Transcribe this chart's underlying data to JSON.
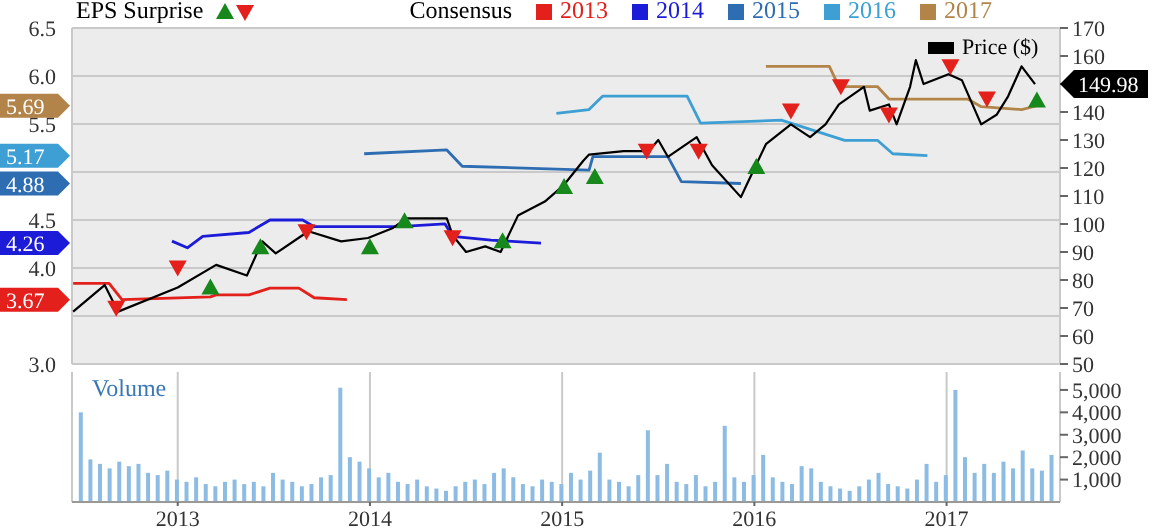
{
  "chart_data": [
    {
      "type": "line",
      "annotations": [
        "EPS Surprise",
        "Consensus",
        "3.67",
        "4.26",
        "4.88",
        "5.17",
        "5.69",
        "149.98"
      ],
      "xlim": [
        2012.45,
        2017.59
      ],
      "xticks": [
        2013,
        2014,
        2015,
        2016,
        2017
      ],
      "ylim": [
        3,
        6.5
      ],
      "yticks": [
        {
          "value": 3,
          "label": "3.0"
        },
        {
          "value": 3.5,
          "label": null
        },
        {
          "value": 4,
          "label": "4.0"
        },
        {
          "value": 4.5,
          "label": "4.5"
        },
        {
          "value": 5,
          "label": null
        },
        {
          "value": 5.5,
          "label": "5.5"
        },
        {
          "value": 6,
          "label": "6.0"
        },
        {
          "value": 6.5,
          "label": "6.5"
        }
      ],
      "y2lim": [
        50,
        170
      ],
      "y2ticks": [
        50,
        60,
        70,
        80,
        90,
        100,
        110,
        120,
        130,
        140,
        {
          "value": 150,
          "label": null
        },
        160,
        170
      ],
      "tick_labels": "y",
      "grid": true,
      "legend": "top",
      "marker": "none",
      "series": [
        {
          "name": "2013",
          "color": "#e3201b",
          "x": [
            2012.456,
            2012.643,
            2012.71,
            2013.17,
            2013.2,
            2013.37,
            2013.48,
            2013.63,
            2013.71,
            2013.88
          ],
          "values": [
            3.84,
            3.84,
            3.67,
            3.7,
            3.72,
            3.72,
            3.79,
            3.79,
            3.69,
            3.67
          ]
        },
        {
          "name": "2014",
          "color": "#1c1cd8",
          "x": [
            2012.97,
            2013.05,
            2013.13,
            2013.37,
            2013.48,
            2013.65,
            2013.71,
            2014.15,
            2014.39,
            2014.43,
            2014.63,
            2014.89
          ],
          "values": [
            4.28,
            4.21,
            4.33,
            4.37,
            4.5,
            4.5,
            4.43,
            4.43,
            4.46,
            4.33,
            4.29,
            4.26
          ]
        },
        {
          "name": "2015",
          "color": "#2f6db3",
          "x": [
            2013.97,
            2014.4,
            2014.48,
            2015.14,
            2015.16,
            2015.55,
            2015.62,
            2015.93
          ],
          "values": [
            5.19,
            5.23,
            5.06,
            5.02,
            5.16,
            5.16,
            4.9,
            4.88
          ]
        },
        {
          "name": "2016",
          "color": "#3d9fd3",
          "x": [
            2014.97,
            2015.14,
            2015.21,
            2015.65,
            2015.72,
            2016.14,
            2016.47,
            2016.64,
            2016.72,
            2016.9
          ],
          "values": [
            5.61,
            5.65,
            5.79,
            5.79,
            5.51,
            5.54,
            5.33,
            5.33,
            5.19,
            5.17
          ]
        },
        {
          "name": "2017",
          "color": "#b3844a",
          "x": [
            2016.06,
            2016.39,
            2016.44,
            2016.64,
            2016.7,
            2017.11,
            2017.18,
            2017.39,
            2017.47
          ],
          "values": [
            6.1,
            6.1,
            5.89,
            5.89,
            5.76,
            5.76,
            5.68,
            5.65,
            5.69
          ]
        },
        {
          "name": "Price ($)",
          "color": "#000000",
          "axis": "y2",
          "x": [
            2012.456,
            2012.62,
            2012.69,
            2013.0,
            2013.2,
            2013.36,
            2013.44,
            2013.51,
            2013.68,
            2013.85,
            2013.99,
            2014.12,
            2014.19,
            2014.4,
            2014.43,
            2014.5,
            2014.6,
            2014.68,
            2014.77,
            2014.91,
            2015.01,
            2015.11,
            2015.14,
            2015.32,
            2015.45,
            2015.5,
            2015.55,
            2015.7,
            2015.78,
            2015.93,
            2015.96,
            2016.06,
            2016.19,
            2016.29,
            2016.37,
            2016.44,
            2016.57,
            2016.6,
            2016.7,
            2016.74,
            2016.81,
            2016.84,
            2016.88,
            2017.01,
            2017.08,
            2017.18,
            2017.26,
            2017.32,
            2017.39,
            2017.46
          ],
          "values": [
            68.7,
            78.2,
            68.7,
            77.3,
            85.4,
            81.6,
            93.8,
            89.5,
            97.4,
            93.8,
            95,
            98.6,
            102,
            102,
            96,
            90,
            92,
            90,
            103,
            108,
            114,
            122.6,
            124.8,
            126,
            126,
            130,
            124,
            131,
            121,
            109.6,
            114,
            128.5,
            135.6,
            131,
            135.6,
            142.7,
            149,
            140.5,
            142.7,
            135.6,
            149,
            158.5,
            150,
            153.5,
            151.3,
            135.6,
            139,
            145.6,
            156.3,
            149.98
          ]
        },
        {
          "type": "scatter",
          "color": "#17891c",
          "axis": "y2",
          "marker": "triangle",
          "x": [
            2013.17,
            2013.43,
            2014.0,
            2014.18,
            2014.69,
            2015.01,
            2015.17,
            2016.01,
            2017.47
          ],
          "values": [
            77.3,
            91.7,
            91.7,
            101,
            93.8,
            113.2,
            116.8,
            120.4,
            144.1
          ]
        },
        {
          "type": "scatter",
          "color": "#e3201b",
          "axis": "y2",
          "marker": "triangle",
          "x": [
            2012.68,
            2013.0,
            2013.67,
            2014.43,
            2015.44,
            2015.71,
            2016.19,
            2016.45,
            2016.7,
            2017.02,
            2017.21
          ],
          "values": [
            70.1,
            84.5,
            97.4,
            95.3,
            126.2,
            126.2,
            140.5,
            149.2,
            139.1,
            156.3,
            144.8
          ]
        }
      ]
    },
    {
      "type": "bar",
      "ylabel": "Volume",
      "color": "#8cbce3",
      "xlim": [
        2012.45,
        2017.59
      ],
      "xticks": [
        2013,
        2014,
        2015,
        2016,
        2017
      ],
      "ylim": [
        0,
        5800
      ],
      "yticks": [
        {
          "value": 1000,
          "label": "1,000"
        },
        {
          "value": 2000,
          "label": "2,000"
        },
        {
          "value": 3000,
          "label": "3,000"
        },
        {
          "value": 4000,
          "label": "4,000"
        },
        {
          "value": 5000,
          "label": "5,000"
        }
      ],
      "grid": "x",
      "x": [
        2012.5,
        2012.55,
        2012.6,
        2012.65,
        2012.7,
        2012.75,
        2012.8,
        2012.85,
        2012.9,
        2012.95,
        2013,
        2013.05,
        2013.1,
        2013.15,
        2013.2,
        2013.25,
        2013.3,
        2013.35,
        2013.4,
        2013.45,
        2013.5,
        2013.55,
        2013.6,
        2013.65,
        2013.7,
        2013.75,
        2013.8,
        2013.85,
        2013.9,
        2013.95,
        2014,
        2014.05,
        2014.1,
        2014.15,
        2014.2,
        2014.25,
        2014.3,
        2014.35,
        2014.4,
        2014.45,
        2014.5,
        2014.55,
        2014.6,
        2014.65,
        2014.7,
        2014.75,
        2014.8,
        2014.85,
        2014.9,
        2014.95,
        2015,
        2015.05,
        2015.1,
        2015.15,
        2015.2,
        2015.25,
        2015.3,
        2015.35,
        2015.4,
        2015.45,
        2015.5,
        2015.55,
        2015.6,
        2015.65,
        2015.7,
        2015.75,
        2015.8,
        2015.85,
        2015.9,
        2015.95,
        2016,
        2016.05,
        2016.1,
        2016.15,
        2016.2,
        2016.25,
        2016.3,
        2016.35,
        2016.4,
        2016.45,
        2016.5,
        2016.55,
        2016.6,
        2016.65,
        2016.7,
        2016.75,
        2016.8,
        2016.85,
        2016.9,
        2016.95,
        2017,
        2017.05,
        2017.1,
        2017.15,
        2017.2,
        2017.25,
        2017.3,
        2017.35,
        2017.4,
        2017.45,
        2017.5,
        2017.55
      ],
      "values": [
        4000,
        1900,
        1700,
        1500,
        1800,
        1600,
        1700,
        1300,
        1200,
        1400,
        1000,
        900,
        1100,
        800,
        700,
        900,
        1000,
        800,
        900,
        700,
        1300,
        1000,
        900,
        700,
        800,
        1100,
        1200,
        5100,
        2000,
        1800,
        1500,
        1100,
        1300,
        900,
        800,
        1000,
        700,
        600,
        500,
        700,
        900,
        1000,
        800,
        1300,
        1500,
        1100,
        800,
        700,
        1000,
        900,
        800,
        1300,
        1000,
        1400,
        2200,
        1000,
        900,
        700,
        1200,
        3200,
        1200,
        1700,
        900,
        800,
        1200,
        700,
        900,
        3400,
        1100,
        900,
        1200,
        2100,
        1100,
        900,
        800,
        1600,
        1500,
        900,
        700,
        600,
        500,
        700,
        1000,
        1300,
        800,
        700,
        600,
        1000,
        1700,
        900,
        1200,
        5000,
        2000,
        1300,
        1700,
        1300,
        1800,
        1500,
        2300,
        1500,
        1400,
        2100
      ]
    }
  ]
}
